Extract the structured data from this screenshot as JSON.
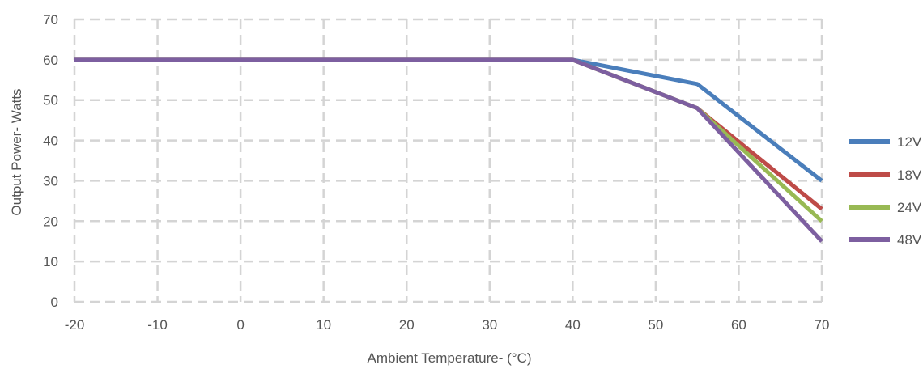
{
  "chart_data": {
    "type": "line",
    "title": "",
    "xlabel": "Ambient Temperature- (°C)",
    "ylabel": "Output Power- Watts",
    "xlim": [
      -20,
      70
    ],
    "ylim": [
      0,
      70
    ],
    "x_ticks": [
      "-20",
      "-10",
      "0",
      "10",
      "20",
      "30",
      "40",
      "50",
      "60",
      "70"
    ],
    "y_ticks": [
      "0",
      "10",
      "20",
      "30",
      "40",
      "50",
      "60",
      "70"
    ],
    "grid": true,
    "legend_position": "right",
    "series": [
      {
        "name": "12V",
        "color": "#4a7ebb",
        "points": [
          [
            -20,
            60
          ],
          [
            40,
            60
          ],
          [
            55,
            54
          ],
          [
            70,
            30
          ]
        ]
      },
      {
        "name": "18V",
        "color": "#be4b48",
        "points": [
          [
            -20,
            60
          ],
          [
            40,
            60
          ],
          [
            55,
            48
          ],
          [
            70,
            23
          ]
        ]
      },
      {
        "name": "24V",
        "color": "#98b954",
        "points": [
          [
            -20,
            60
          ],
          [
            40,
            60
          ],
          [
            55,
            48
          ],
          [
            70,
            20
          ]
        ]
      },
      {
        "name": "48V",
        "color": "#7d5fa0",
        "points": [
          [
            -20,
            60
          ],
          [
            40,
            60
          ],
          [
            55,
            48
          ],
          [
            70,
            15
          ]
        ]
      }
    ]
  }
}
